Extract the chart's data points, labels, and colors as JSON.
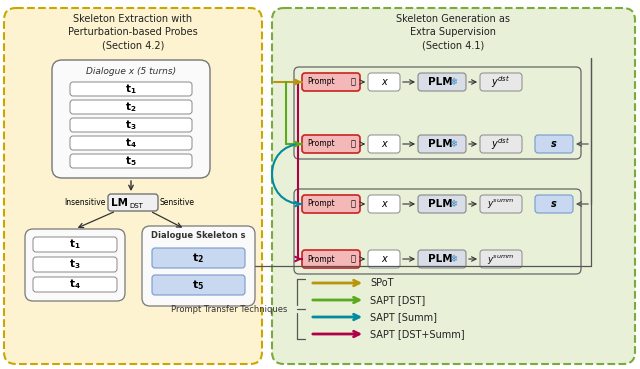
{
  "bg_color": "#ffffff",
  "left_panel_bg": "#fdf3d0",
  "right_panel_bg": "#e8f0d8",
  "left_title": "Skeleton Extraction with\nPerturbation-based Probes\n(Section 4.2)",
  "right_title": "Skeleton Generation as\nExtra Supervision\n(Section 4.1)",
  "dialogue_label": "Dialogue x (5 turns)",
  "skeleton_label": "Dialogue Skeleton s",
  "insensitive_label": "Insensitive",
  "sensitive_label": "Sensitive",
  "prompt_transfer_label": "Prompt Transfer Techniques",
  "legend_items": [
    {
      "label": "SPoT",
      "color": "#b8960c"
    },
    {
      "label": "SAPT [DST]",
      "color": "#5aaa1e"
    },
    {
      "label": "SAPT [Summ]",
      "color": "#008b9e"
    },
    {
      "label": "SAPT [DST+Summ]",
      "color": "#b0004a"
    }
  ],
  "row_has_s": [
    false,
    true,
    true,
    false
  ],
  "prompt_bg": "#f4b8b8",
  "prompt_border": "#cc2222",
  "plm_bg": "#d8dde8",
  "s_box_bg": "#c8d8f0",
  "y_box_bg": "#e8e8e8",
  "white": "#ffffff",
  "gray_border": "#888888",
  "dark_border": "#555555",
  "arrow_color": "#333333"
}
